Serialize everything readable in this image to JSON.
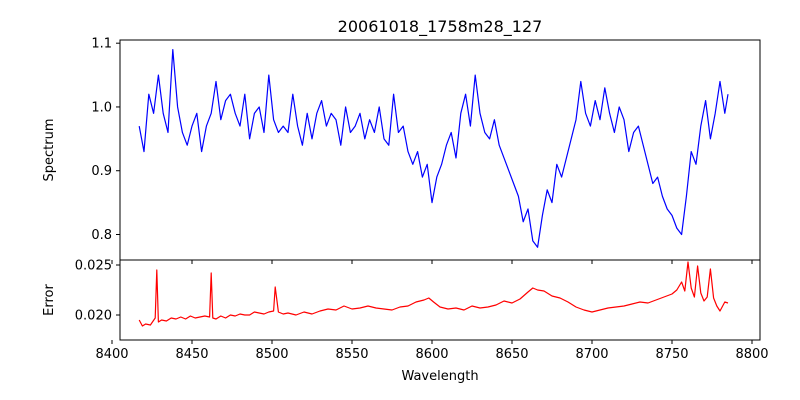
{
  "chart_data": [
    {
      "type": "line",
      "panel": "top",
      "title": "20061018_1758m28_127",
      "xlabel": "",
      "ylabel": "Spectrum",
      "xlim": [
        8405,
        8805
      ],
      "ylim": [
        0.76,
        1.105
      ],
      "x_ticks": [
        8400,
        8450,
        8500,
        8550,
        8600,
        8650,
        8700,
        8750,
        8800
      ],
      "y_ticks": [
        0.8,
        0.9,
        1.0,
        1.1
      ],
      "y_tick_labels": [
        "0.8",
        "0.9",
        "1.0",
        "1.1"
      ],
      "grid": false,
      "series": [
        {
          "color": "#0000ff",
          "x": [
            8417,
            8420,
            8423,
            8426,
            8429,
            8432,
            8435,
            8438,
            8441,
            8444,
            8447,
            8450,
            8453,
            8456,
            8459,
            8462,
            8465,
            8468,
            8471,
            8474,
            8477,
            8480,
            8483,
            8486,
            8489,
            8492,
            8495,
            8498,
            8501,
            8504,
            8507,
            8510,
            8513,
            8516,
            8519,
            8522,
            8525,
            8528,
            8531,
            8534,
            8537,
            8540,
            8543,
            8546,
            8549,
            8552,
            8555,
            8558,
            8561,
            8564,
            8567,
            8570,
            8573,
            8576,
            8579,
            8582,
            8585,
            8588,
            8591,
            8594,
            8597,
            8600,
            8603,
            8606,
            8609,
            8612,
            8615,
            8618,
            8621,
            8624,
            8627,
            8630,
            8633,
            8636,
            8639,
            8642,
            8645,
            8648,
            8651,
            8654,
            8657,
            8660,
            8663,
            8666,
            8669,
            8672,
            8675,
            8678,
            8681,
            8684,
            8687,
            8690,
            8693,
            8696,
            8699,
            8702,
            8705,
            8708,
            8711,
            8714,
            8717,
            8720,
            8723,
            8726,
            8729,
            8732,
            8735,
            8738,
            8741,
            8744,
            8747,
            8750,
            8753,
            8756,
            8759,
            8762,
            8765,
            8768,
            8771,
            8774,
            8777,
            8780,
            8783,
            8785
          ],
          "y": [
            0.97,
            0.93,
            1.02,
            0.99,
            1.05,
            0.99,
            0.96,
            1.09,
            1.0,
            0.96,
            0.94,
            0.97,
            0.99,
            0.93,
            0.97,
            0.99,
            1.04,
            0.98,
            1.01,
            1.02,
            0.99,
            0.97,
            1.02,
            0.95,
            0.99,
            1.0,
            0.96,
            1.05,
            0.98,
            0.96,
            0.97,
            0.96,
            1.02,
            0.97,
            0.94,
            0.99,
            0.95,
            0.99,
            1.01,
            0.97,
            0.99,
            0.98,
            0.94,
            1.0,
            0.96,
            0.97,
            0.99,
            0.95,
            0.98,
            0.96,
            1.0,
            0.95,
            0.94,
            1.02,
            0.96,
            0.97,
            0.93,
            0.91,
            0.93,
            0.89,
            0.91,
            0.85,
            0.89,
            0.91,
            0.94,
            0.96,
            0.92,
            0.99,
            1.02,
            0.97,
            1.05,
            0.99,
            0.96,
            0.95,
            0.98,
            0.94,
            0.92,
            0.9,
            0.88,
            0.86,
            0.82,
            0.84,
            0.79,
            0.78,
            0.83,
            0.87,
            0.85,
            0.91,
            0.89,
            0.92,
            0.95,
            0.98,
            1.04,
            0.99,
            0.97,
            1.01,
            0.98,
            1.03,
            0.99,
            0.96,
            1.0,
            0.98,
            0.93,
            0.96,
            0.97,
            0.94,
            0.91,
            0.88,
            0.89,
            0.86,
            0.84,
            0.83,
            0.81,
            0.8,
            0.86,
            0.93,
            0.91,
            0.97,
            1.01,
            0.95,
            0.99,
            1.04,
            0.99,
            1.02
          ]
        }
      ]
    },
    {
      "type": "line",
      "panel": "bottom",
      "title": "",
      "xlabel": "Wavelength",
      "ylabel": "Error",
      "xlim": [
        8405,
        8805
      ],
      "ylim": [
        0.0175,
        0.0255
      ],
      "x_ticks": [
        8400,
        8450,
        8500,
        8550,
        8600,
        8650,
        8700,
        8750,
        8800
      ],
      "x_tick_labels": [
        "8400",
        "8450",
        "8500",
        "8550",
        "8600",
        "8650",
        "8700",
        "8750",
        "8800"
      ],
      "y_ticks": [
        0.02,
        0.025
      ],
      "y_tick_labels": [
        "0.020",
        "0.025"
      ],
      "grid": false,
      "series": [
        {
          "color": "#ff0000",
          "x": [
            8417,
            8419,
            8421,
            8424,
            8427,
            8428,
            8429,
            8431,
            8434,
            8437,
            8440,
            8443,
            8446,
            8449,
            8452,
            8455,
            8458,
            8461,
            8462,
            8463,
            8465,
            8468,
            8471,
            8474,
            8477,
            8480,
            8483,
            8486,
            8489,
            8492,
            8495,
            8498,
            8501,
            8502,
            8504,
            8507,
            8510,
            8515,
            8520,
            8525,
            8530,
            8535,
            8540,
            8545,
            8550,
            8555,
            8560,
            8565,
            8570,
            8575,
            8580,
            8585,
            8590,
            8595,
            8598,
            8601,
            8605,
            8610,
            8615,
            8620,
            8625,
            8630,
            8635,
            8640,
            8645,
            8650,
            8655,
            8660,
            8663,
            8666,
            8670,
            8675,
            8680,
            8685,
            8690,
            8695,
            8700,
            8705,
            8710,
            8715,
            8720,
            8725,
            8730,
            8735,
            8740,
            8745,
            8750,
            8753,
            8756,
            8758,
            8760,
            8762,
            8764,
            8766,
            8768,
            8770,
            8772,
            8774,
            8776,
            8778,
            8780,
            8783,
            8785
          ],
          "y": [
            0.0195,
            0.0189,
            0.0191,
            0.019,
            0.0197,
            0.0245,
            0.0193,
            0.0195,
            0.0194,
            0.0197,
            0.0196,
            0.0198,
            0.0196,
            0.0199,
            0.0197,
            0.0198,
            0.0199,
            0.0198,
            0.0242,
            0.0197,
            0.0196,
            0.0199,
            0.0197,
            0.02,
            0.0199,
            0.0201,
            0.02,
            0.02,
            0.0203,
            0.0202,
            0.0201,
            0.0203,
            0.0204,
            0.0228,
            0.0203,
            0.0201,
            0.0202,
            0.02,
            0.0203,
            0.0201,
            0.0204,
            0.0206,
            0.0205,
            0.0209,
            0.0206,
            0.0207,
            0.0209,
            0.0207,
            0.0206,
            0.0205,
            0.0208,
            0.0209,
            0.0213,
            0.0215,
            0.0217,
            0.0213,
            0.0208,
            0.0206,
            0.0207,
            0.0205,
            0.0209,
            0.0207,
            0.0208,
            0.021,
            0.0214,
            0.0212,
            0.0216,
            0.0223,
            0.0227,
            0.0225,
            0.0224,
            0.0219,
            0.0217,
            0.0213,
            0.0208,
            0.0205,
            0.0203,
            0.0205,
            0.0207,
            0.0208,
            0.0209,
            0.0211,
            0.0213,
            0.0212,
            0.0215,
            0.0218,
            0.0221,
            0.0225,
            0.0233,
            0.0224,
            0.0253,
            0.0227,
            0.0218,
            0.0249,
            0.0222,
            0.0214,
            0.0218,
            0.0246,
            0.0217,
            0.0209,
            0.0204,
            0.0213,
            0.0212
          ]
        }
      ]
    }
  ]
}
